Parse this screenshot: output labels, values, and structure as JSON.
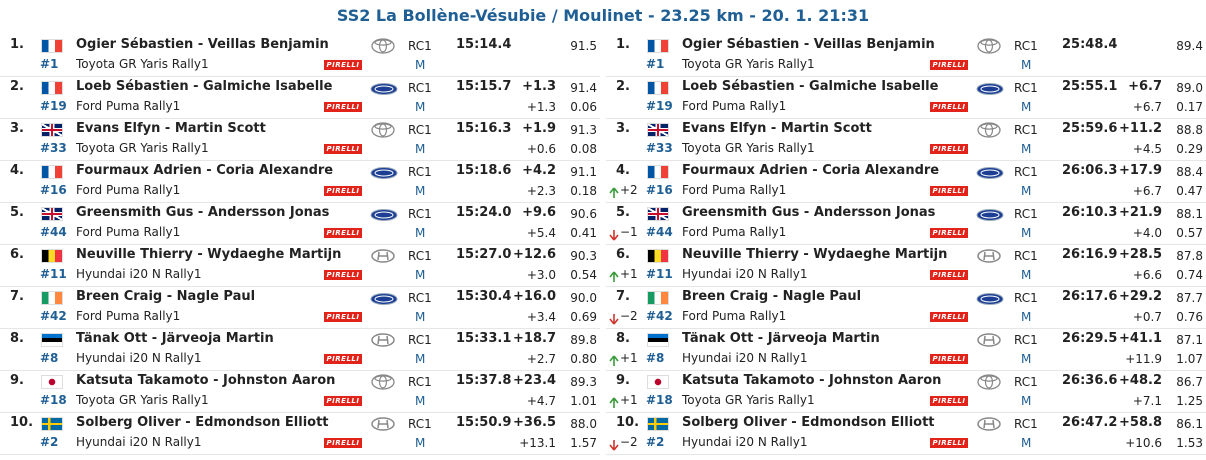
{
  "title": "SS2 La Bollène-Vésubie / Moulinet - 23.25 km - 20. 1. 21:31",
  "tyre_brand": "PIRELLI",
  "stage": {
    "rows": [
      {
        "pos": "1.",
        "number": "#1",
        "crew": "Ogier Sébastien - Veillas Benjamin",
        "car": "Toyota GR Yaris Rally1",
        "class": "RC1",
        "group": "M",
        "time": "15:14.4",
        "speed": "91.5"
      },
      {
        "pos": "2.",
        "number": "#19",
        "crew": "Loeb Sébastien - Galmiche Isabelle",
        "car": "Ford Puma Rally1",
        "class": "RC1",
        "group": "M",
        "time": "15:15.7",
        "gap": "+1.3",
        "speed": "91.4",
        "diff": "+1.3",
        "per_km": "0.06"
      },
      {
        "pos": "3.",
        "number": "#33",
        "crew": "Evans Elfyn - Martin Scott",
        "car": "Toyota GR Yaris Rally1",
        "class": "RC1",
        "group": "M",
        "time": "15:16.3",
        "gap": "+1.9",
        "speed": "91.3",
        "diff": "+0.6",
        "per_km": "0.08"
      },
      {
        "pos": "4.",
        "number": "#16",
        "crew": "Fourmaux Adrien - Coria Alexandre",
        "car": "Ford Puma Rally1",
        "class": "RC1",
        "group": "M",
        "time": "15:18.6",
        "gap": "+4.2",
        "speed": "91.1",
        "diff": "+2.3",
        "per_km": "0.18"
      },
      {
        "pos": "5.",
        "number": "#44",
        "crew": "Greensmith Gus - Andersson Jonas",
        "car": "Ford Puma Rally1",
        "class": "RC1",
        "group": "M",
        "time": "15:24.0",
        "gap": "+9.6",
        "speed": "90.6",
        "diff": "+5.4",
        "per_km": "0.41"
      },
      {
        "pos": "6.",
        "number": "#11",
        "crew": "Neuville Thierry - Wydaeghe Martijn",
        "car": "Hyundai i20 N Rally1",
        "class": "RC1",
        "group": "M",
        "time": "15:27.0",
        "gap": "+12.6",
        "speed": "90.3",
        "diff": "+3.0",
        "per_km": "0.54"
      },
      {
        "pos": "7.",
        "number": "#42",
        "crew": "Breen Craig - Nagle Paul",
        "car": "Ford Puma Rally1",
        "class": "RC1",
        "group": "M",
        "time": "15:30.4",
        "gap": "+16.0",
        "speed": "90.0",
        "diff": "+3.4",
        "per_km": "0.69"
      },
      {
        "pos": "8.",
        "number": "#8",
        "crew": "Tänak Ott - Järveoja Martin",
        "car": "Hyundai i20 N Rally1",
        "class": "RC1",
        "group": "M",
        "time": "15:33.1",
        "gap": "+18.7",
        "speed": "89.8",
        "diff": "+2.7",
        "per_km": "0.80"
      },
      {
        "pos": "9.",
        "number": "#18",
        "crew": "Katsuta Takamoto - Johnston Aaron",
        "car": "Toyota GR Yaris Rally1",
        "class": "RC1",
        "group": "M",
        "time": "15:37.8",
        "gap": "+23.4",
        "speed": "89.3",
        "diff": "+4.7",
        "per_km": "1.01"
      },
      {
        "pos": "10.",
        "number": "#2",
        "crew": "Solberg Oliver - Edmondson Elliott",
        "car": "Hyundai i20 N Rally1",
        "class": "RC1",
        "group": "M",
        "time": "15:50.9",
        "gap": "+36.5",
        "speed": "88.0",
        "diff": "+13.1",
        "per_km": "1.57"
      }
    ]
  },
  "overall": {
    "rows": [
      {
        "pos": "1.",
        "number": "#1",
        "crew": "Ogier Sébastien - Veillas Benjamin",
        "car": "Toyota GR Yaris Rally1",
        "class": "RC1",
        "group": "M",
        "time": "25:48.4",
        "speed": "89.4"
      },
      {
        "pos": "2.",
        "number": "#19",
        "crew": "Loeb Sébastien - Galmiche Isabelle",
        "car": "Ford Puma Rally1",
        "class": "RC1",
        "group": "M",
        "time": "25:55.1",
        "gap": "+6.7",
        "speed": "89.0",
        "diff": "+6.7",
        "per_km": "0.17"
      },
      {
        "pos": "3.",
        "number": "#33",
        "crew": "Evans Elfyn - Martin Scott",
        "car": "Toyota GR Yaris Rally1",
        "class": "RC1",
        "group": "M",
        "time": "25:59.6",
        "gap": "+11.2",
        "speed": "88.8",
        "diff": "+4.5",
        "per_km": "0.29"
      },
      {
        "pos": "4.",
        "change": "+2",
        "number": "#16",
        "crew": "Fourmaux Adrien - Coria Alexandre",
        "car": "Ford Puma Rally1",
        "class": "RC1",
        "group": "M",
        "time": "26:06.3",
        "gap": "+17.9",
        "speed": "88.4",
        "diff": "+6.7",
        "per_km": "0.47"
      },
      {
        "pos": "5.",
        "change": "−1",
        "number": "#44",
        "crew": "Greensmith Gus - Andersson Jonas",
        "car": "Ford Puma Rally1",
        "class": "RC1",
        "group": "M",
        "time": "26:10.3",
        "gap": "+21.9",
        "speed": "88.1",
        "diff": "+4.0",
        "per_km": "0.57"
      },
      {
        "pos": "6.",
        "change": "+1",
        "number": "#11",
        "crew": "Neuville Thierry - Wydaeghe Martijn",
        "car": "Hyundai i20 N Rally1",
        "class": "RC1",
        "group": "M",
        "time": "26:16.9",
        "gap": "+28.5",
        "speed": "87.8",
        "diff": "+6.6",
        "per_km": "0.74"
      },
      {
        "pos": "7.",
        "change": "−2",
        "number": "#42",
        "crew": "Breen Craig - Nagle Paul",
        "car": "Ford Puma Rally1",
        "class": "RC1",
        "group": "M",
        "time": "26:17.6",
        "gap": "+29.2",
        "speed": "87.7",
        "diff": "+0.7",
        "per_km": "0.76"
      },
      {
        "pos": "8.",
        "change": "+1",
        "number": "#8",
        "crew": "Tänak Ott - Järveoja Martin",
        "car": "Hyundai i20 N Rally1",
        "class": "RC1",
        "group": "M",
        "time": "26:29.5",
        "gap": "+41.1",
        "speed": "87.1",
        "diff": "+11.9",
        "per_km": "1.07"
      },
      {
        "pos": "9.",
        "change": "+1",
        "number": "#18",
        "crew": "Katsuta Takamoto - Johnston Aaron",
        "car": "Toyota GR Yaris Rally1",
        "class": "RC1",
        "group": "M",
        "time": "26:36.6",
        "gap": "+48.2",
        "speed": "86.7",
        "diff": "+7.1",
        "per_km": "1.25"
      },
      {
        "pos": "10.",
        "change": "−2",
        "number": "#2",
        "crew": "Solberg Oliver - Edmondson Elliott",
        "car": "Hyundai i20 N Rally1",
        "class": "RC1",
        "group": "M",
        "time": "26:47.2",
        "gap": "+58.8",
        "speed": "86.1",
        "diff": "+10.6",
        "per_km": "1.53"
      }
    ]
  }
}
